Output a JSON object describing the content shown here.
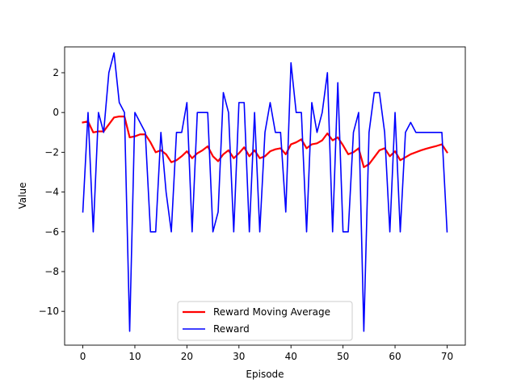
{
  "chart_data": {
    "type": "line",
    "title": "",
    "xlabel": "Episode",
    "ylabel": "Value",
    "xlim": [
      -3.5,
      73.5
    ],
    "ylim": [
      -11.7,
      3.3
    ],
    "xticks": [
      0,
      10,
      20,
      30,
      40,
      50,
      60,
      70
    ],
    "yticks": [
      2,
      0,
      -2,
      -4,
      -6,
      -8,
      -10
    ],
    "ytick_labels": [
      "2",
      "0",
      "−2",
      "−4",
      "−6",
      "−8",
      "−10"
    ],
    "grid": false,
    "legend_position": "lower-center",
    "series": [
      {
        "name": "Reward Moving Average",
        "color": "#ff0000",
        "x": [
          0,
          1,
          2,
          3,
          4,
          5,
          6,
          7,
          8,
          9,
          10,
          11,
          12,
          13,
          14,
          15,
          16,
          17,
          18,
          19,
          20,
          21,
          22,
          23,
          24,
          25,
          26,
          27,
          28,
          29,
          30,
          31,
          32,
          33,
          34,
          35,
          36,
          37,
          38,
          39,
          40,
          41,
          42,
          43,
          44,
          45,
          46,
          47,
          48,
          49,
          50,
          51,
          52,
          53,
          54,
          55,
          56,
          57,
          58,
          59,
          60,
          61,
          62,
          63,
          64,
          65,
          66,
          67,
          68,
          69,
          70
        ],
        "y": [
          -0.5,
          -0.45,
          -1.0,
          -0.95,
          -0.95,
          -0.6,
          -0.25,
          -0.2,
          -0.2,
          -1.25,
          -1.2,
          -1.1,
          -1.1,
          -1.5,
          -2.0,
          -1.9,
          -2.1,
          -2.5,
          -2.4,
          -2.2,
          -1.95,
          -2.3,
          -2.05,
          -1.9,
          -1.7,
          -2.2,
          -2.45,
          -2.1,
          -1.9,
          -2.3,
          -2.05,
          -1.75,
          -2.2,
          -1.9,
          -2.3,
          -2.2,
          -1.95,
          -1.85,
          -1.8,
          -2.1,
          -1.6,
          -1.5,
          -1.35,
          -1.8,
          -1.6,
          -1.55,
          -1.4,
          -1.05,
          -1.4,
          -1.25,
          -1.65,
          -2.1,
          -2.0,
          -1.8,
          -2.75,
          -2.6,
          -2.25,
          -1.9,
          -1.8,
          -2.2,
          -1.95,
          -2.4,
          -2.25,
          -2.1,
          -2.0,
          -1.9,
          -1.82,
          -1.75,
          -1.68,
          -1.6,
          -2.0
        ]
      },
      {
        "name": "Reward",
        "color": "#0000ff",
        "x": [
          0,
          1,
          2,
          3,
          4,
          5,
          6,
          7,
          8,
          9,
          10,
          11,
          12,
          13,
          14,
          15,
          16,
          17,
          18,
          19,
          20,
          21,
          22,
          23,
          24,
          25,
          26,
          27,
          28,
          29,
          30,
          31,
          32,
          33,
          34,
          35,
          36,
          37,
          38,
          39,
          40,
          41,
          42,
          43,
          44,
          45,
          46,
          47,
          48,
          49,
          50,
          51,
          52,
          53,
          54,
          55,
          56,
          57,
          58,
          59,
          60,
          61,
          62,
          63,
          64,
          65,
          66,
          67,
          68,
          69,
          70
        ],
        "y": [
          -5,
          0,
          -6,
          0,
          -1,
          2,
          3,
          0.5,
          0,
          -11,
          0,
          -0.5,
          -1,
          -6,
          -6,
          -1,
          -4,
          -6,
          -1,
          -1,
          0.5,
          -6,
          0,
          0,
          0,
          -6,
          -5,
          1,
          0,
          -6,
          0.5,
          0.5,
          -6,
          0,
          -6,
          -1,
          0.5,
          -1,
          -1,
          -5,
          2.5,
          0,
          0,
          -6,
          0.5,
          -1,
          0,
          2,
          -6,
          1.5,
          -6,
          -6,
          -1,
          0,
          -11,
          -1,
          1,
          1,
          -1,
          -6,
          0,
          -6,
          -1,
          -0.5,
          -1,
          -1,
          -1,
          -1,
          -1,
          -1,
          -6
        ]
      }
    ]
  }
}
